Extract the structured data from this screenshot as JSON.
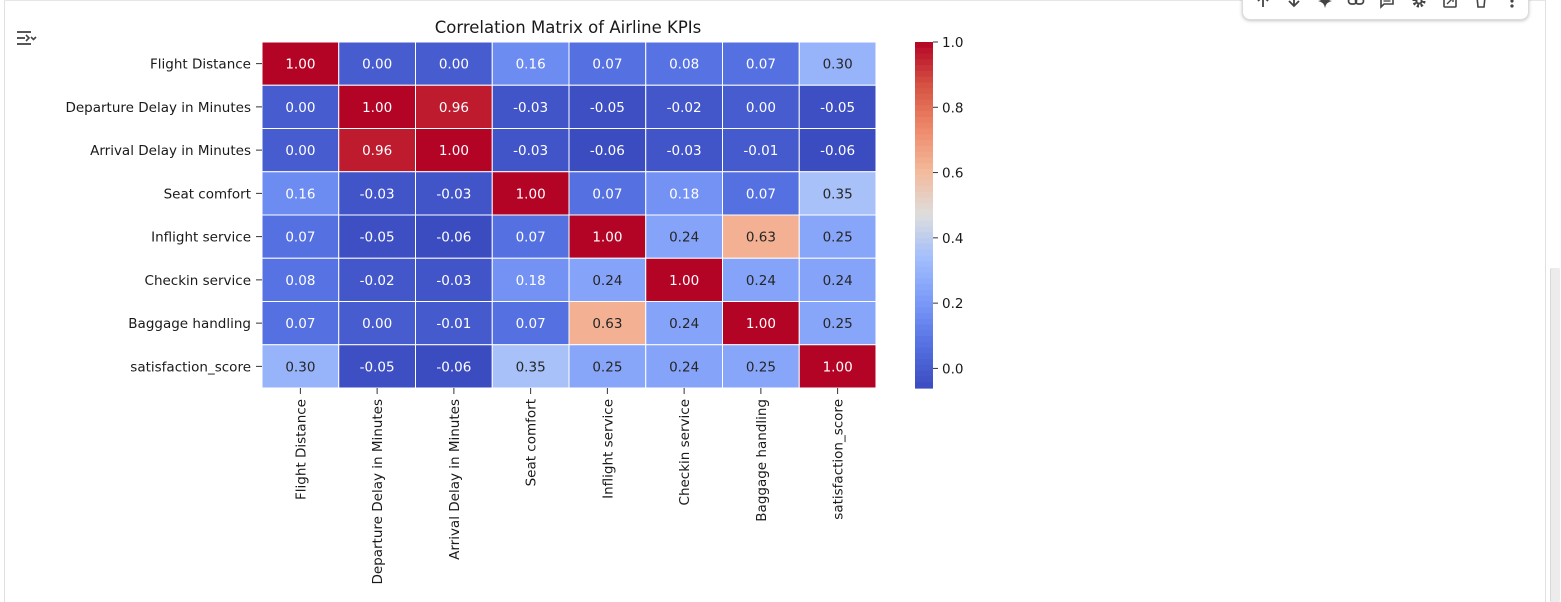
{
  "toolbar": {
    "buttons": [
      {
        "name": "move-up-icon",
        "label": "Move cell up"
      },
      {
        "name": "move-down-icon",
        "label": "Move cell down"
      },
      {
        "name": "sparkle-icon",
        "label": "Gemini"
      },
      {
        "name": "link-icon",
        "label": "Copy link"
      },
      {
        "name": "comment-icon",
        "label": "Add comment"
      },
      {
        "name": "gear-icon",
        "label": "Settings"
      },
      {
        "name": "mirror-icon",
        "label": "Mirror cell in tab"
      },
      {
        "name": "trash-icon",
        "label": "Delete cell"
      },
      {
        "name": "more-vert-icon",
        "label": "More actions"
      }
    ]
  },
  "output_toggle_icon": "output-toggle-icon",
  "chart_data": {
    "type": "heatmap",
    "title": "Correlation Matrix of Airline KPIs",
    "colormap": "coolwarm",
    "vmin": -0.06,
    "vmax": 1.0,
    "labels": [
      "Flight Distance",
      "Departure Delay in Minutes",
      "Arrival Delay in Minutes",
      "Seat comfort",
      "Inflight service",
      "Checkin service",
      "Baggage handling",
      "satisfaction_score"
    ],
    "matrix": [
      [
        1.0,
        0.0,
        0.0,
        0.16,
        0.07,
        0.08,
        0.07,
        0.3
      ],
      [
        0.0,
        1.0,
        0.96,
        -0.03,
        -0.05,
        -0.02,
        0.0,
        -0.05
      ],
      [
        0.0,
        0.96,
        1.0,
        -0.03,
        -0.06,
        -0.03,
        -0.01,
        -0.06
      ],
      [
        0.16,
        -0.03,
        -0.03,
        1.0,
        0.07,
        0.18,
        0.07,
        0.35
      ],
      [
        0.07,
        -0.05,
        -0.06,
        0.07,
        1.0,
        0.24,
        0.63,
        0.25
      ],
      [
        0.08,
        -0.02,
        -0.03,
        0.18,
        0.24,
        1.0,
        0.24,
        0.24
      ],
      [
        0.07,
        0.0,
        -0.01,
        0.07,
        0.63,
        0.24,
        1.0,
        0.25
      ],
      [
        0.3,
        -0.05,
        -0.06,
        0.35,
        0.25,
        0.24,
        0.25,
        1.0
      ]
    ],
    "annotation_format": "0.00",
    "colorbar_ticks": [
      "0.0",
      "0.2",
      "0.4",
      "0.6",
      "0.8",
      "1.0"
    ],
    "colorbar_tick_values": [
      0.0,
      0.2,
      0.4,
      0.6,
      0.8,
      1.0
    ]
  }
}
